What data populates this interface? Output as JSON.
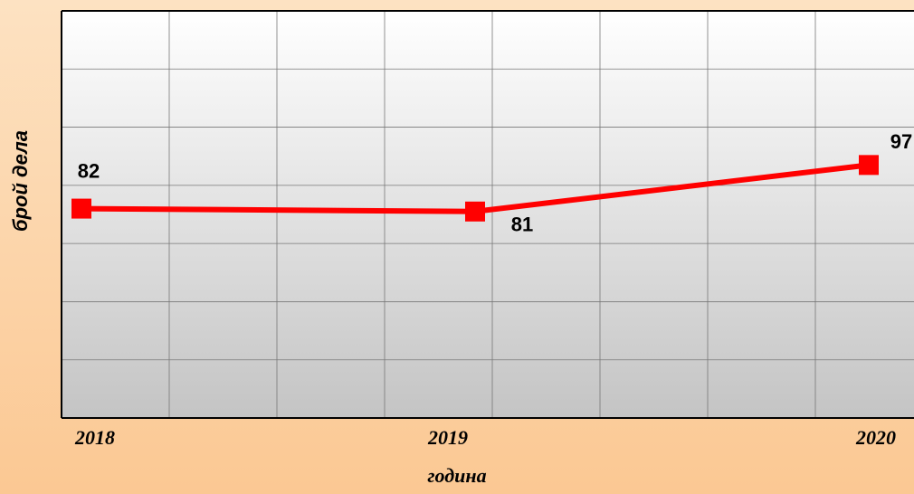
{
  "chart_data": {
    "type": "line",
    "categories": [
      "2018",
      "2019",
      "2020"
    ],
    "values": [
      82,
      81,
      97
    ],
    "color": "#ff0000",
    "x_label": "година",
    "y_label": "брой дела",
    "ylim": [
      10,
      150
    ],
    "yticks": [
      10,
      30,
      50,
      70,
      90,
      110,
      130,
      150
    ],
    "grid": true
  }
}
